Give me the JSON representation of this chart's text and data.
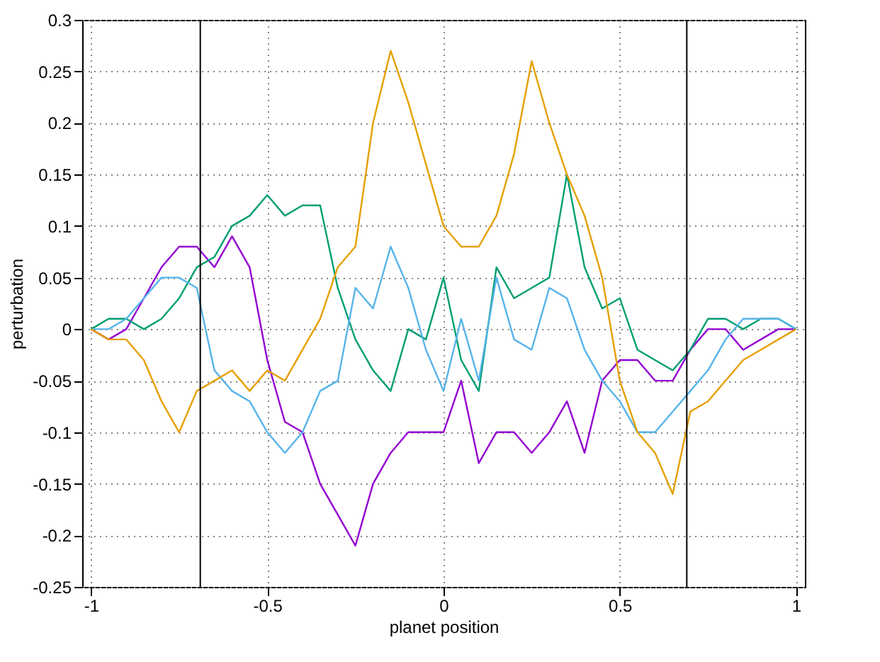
{
  "chart_data": {
    "type": "line",
    "xlabel": "planet position",
    "ylabel": "perturbation",
    "x": [
      -1,
      -0.95,
      -0.9,
      -0.85,
      -0.8,
      -0.75,
      -0.7,
      -0.65,
      -0.6,
      -0.55,
      -0.5,
      -0.45,
      -0.4,
      -0.35,
      -0.3,
      -0.25,
      -0.2,
      -0.15,
      -0.1,
      -0.05,
      0,
      0.05,
      0.1,
      0.15,
      0.2,
      0.25,
      0.3,
      0.35,
      0.4,
      0.45,
      0.5,
      0.55,
      0.6,
      0.65,
      0.7,
      0.75,
      0.8,
      0.85,
      0.9,
      0.95,
      1
    ],
    "series": [
      {
        "color": "#9400d3",
        "values": [
          0,
          -0.01,
          0,
          0.03,
          0.06,
          0.08,
          0.08,
          0.06,
          0.09,
          0.06,
          -0.03,
          -0.09,
          -0.1,
          -0.15,
          -0.18,
          -0.21,
          -0.15,
          -0.12,
          -0.1,
          -0.1,
          -0.1,
          -0.05,
          -0.13,
          -0.1,
          -0.1,
          -0.12,
          -0.1,
          -0.07,
          -0.12,
          -0.05,
          -0.03,
          -0.03,
          -0.05,
          -0.05,
          -0.02,
          0,
          0,
          -0.02,
          -0.01,
          0,
          0
        ]
      },
      {
        "color": "#009e73",
        "values": [
          0,
          0.01,
          0.01,
          0,
          0.01,
          0.03,
          0.06,
          0.07,
          0.1,
          0.11,
          0.13,
          0.11,
          0.12,
          0.12,
          0.04,
          -0.01,
          -0.04,
          -0.06,
          0,
          -0.01,
          0.05,
          -0.03,
          -0.06,
          0.06,
          0.03,
          0.04,
          0.05,
          0.15,
          0.06,
          0.02,
          0.03,
          -0.02,
          -0.03,
          -0.04,
          -0.02,
          0.01,
          0.01,
          0,
          0.01,
          0.01,
          0
        ]
      },
      {
        "color": "#56b4e9",
        "values": [
          0,
          0,
          0.01,
          0.03,
          0.05,
          0.05,
          0.04,
          -0.04,
          -0.06,
          -0.07,
          -0.1,
          -0.12,
          -0.1,
          -0.06,
          -0.05,
          0.04,
          0.02,
          0.08,
          0.04,
          -0.02,
          -0.06,
          0.01,
          -0.05,
          0.05,
          -0.01,
          -0.02,
          0.04,
          0.03,
          -0.02,
          -0.05,
          -0.07,
          -0.1,
          -0.1,
          -0.08,
          -0.06,
          -0.04,
          -0.01,
          0.01,
          0.01,
          0.01,
          0
        ]
      },
      {
        "color": "#e69f00",
        "values": [
          0,
          -0.01,
          -0.01,
          -0.03,
          -0.07,
          -0.1,
          -0.06,
          -0.05,
          -0.04,
          -0.06,
          -0.04,
          -0.05,
          -0.02,
          0.01,
          0.06,
          0.08,
          0.2,
          0.27,
          0.22,
          0.16,
          0.1,
          0.08,
          0.08,
          0.11,
          0.17,
          0.26,
          0.2,
          0.15,
          0.11,
          0.05,
          -0.05,
          -0.1,
          -0.12,
          -0.16,
          -0.08,
          -0.07,
          -0.05,
          -0.03,
          -0.02,
          -0.01,
          0
        ]
      }
    ],
    "xlim": [
      -1.025,
      1.025
    ],
    "xticks": [
      -1,
      -0.5,
      0,
      0.5,
      1
    ],
    "ylim": [
      -0.25,
      0.3
    ],
    "yticks": [
      -0.25,
      -0.2,
      -0.15,
      -0.1,
      -0.05,
      0,
      0.05,
      0.1,
      0.15,
      0.2,
      0.25,
      0.3
    ],
    "ref_lines": [
      {
        "axis": "x",
        "value": -0.69,
        "color": "#000000"
      },
      {
        "axis": "x",
        "value": 0.69,
        "color": "#000000"
      }
    ],
    "grid": true
  }
}
